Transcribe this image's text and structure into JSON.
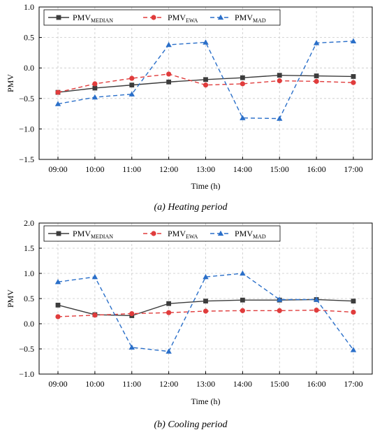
{
  "colors": {
    "median": "#3c3c3c",
    "ewa": "#e03c3c",
    "mad": "#2a6fc9"
  },
  "legend": [
    {
      "key": "median",
      "base": "PMV",
      "sub": "MEDIAN"
    },
    {
      "key": "ewa",
      "base": "PMV",
      "sub": "EWA"
    },
    {
      "key": "mad",
      "base": "PMV",
      "sub": "MAD"
    }
  ],
  "chart_data": [
    {
      "type": "line",
      "caption": "(a)  Heating period",
      "xlabel": "Time (h)",
      "ylabel": "PMV",
      "categories": [
        "09:00",
        "10:00",
        "11:00",
        "12:00",
        "13:00",
        "14:00",
        "15:00",
        "16:00",
        "17:00"
      ],
      "ylim": [
        -1.5,
        1.0
      ],
      "yticks": [
        -1.5,
        -1.0,
        -0.5,
        0.0,
        0.5,
        1.0
      ],
      "ytick_labels": [
        "−1.5",
        "−1.0",
        "−0.5",
        "0.0",
        "0.5",
        "1.0"
      ],
      "grid": true,
      "legend_position": "top-left",
      "series": [
        {
          "key": "median",
          "values": [
            -0.4,
            -0.33,
            -0.28,
            -0.23,
            -0.19,
            -0.16,
            -0.12,
            -0.13,
            -0.14
          ]
        },
        {
          "key": "ewa",
          "values": [
            -0.4,
            -0.26,
            -0.17,
            -0.1,
            -0.28,
            -0.26,
            -0.21,
            -0.22,
            -0.24
          ]
        },
        {
          "key": "mad",
          "values": [
            -0.59,
            -0.48,
            -0.43,
            0.38,
            0.42,
            -0.82,
            -0.83,
            0.41,
            0.44
          ]
        }
      ]
    },
    {
      "type": "line",
      "caption": "(b)  Cooling period",
      "xlabel": "Time (h)",
      "ylabel": "PMV",
      "categories": [
        "09:00",
        "10:00",
        "11:00",
        "12:00",
        "13:00",
        "14:00",
        "15:00",
        "16:00",
        "17:00"
      ],
      "ylim": [
        -1.0,
        2.0
      ],
      "yticks": [
        -1.0,
        -0.5,
        0.0,
        0.5,
        1.0,
        1.5,
        2.0
      ],
      "ytick_labels": [
        "−1.0",
        "−0.5",
        "0.0",
        "0.5",
        "1.0",
        "1.5",
        "2.0"
      ],
      "grid": true,
      "legend_position": "top-left",
      "series": [
        {
          "key": "median",
          "values": [
            0.37,
            0.18,
            0.16,
            0.4,
            0.45,
            0.47,
            0.47,
            0.48,
            0.45
          ]
        },
        {
          "key": "ewa",
          "values": [
            0.14,
            0.17,
            0.2,
            0.22,
            0.25,
            0.26,
            0.26,
            0.27,
            0.23
          ]
        },
        {
          "key": "mad",
          "values": [
            0.83,
            0.93,
            -0.47,
            -0.55,
            0.93,
            1.0,
            0.48,
            0.48,
            -0.52
          ]
        }
      ]
    }
  ]
}
